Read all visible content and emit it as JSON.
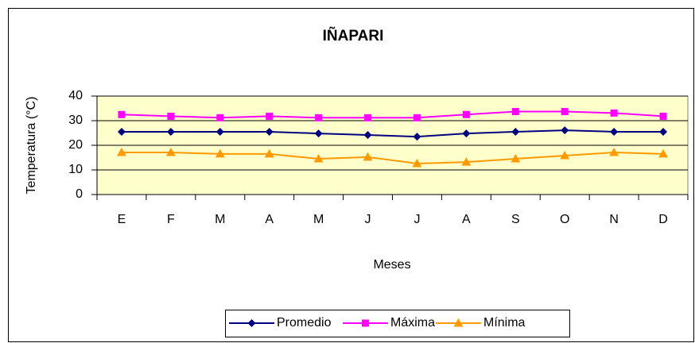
{
  "chart_data": {
    "type": "line",
    "title": "IÑAPARI",
    "x_label": "Meses",
    "y_label": "Temperatura (°C)",
    "categories": [
      "E",
      "F",
      "M",
      "A",
      "M",
      "J",
      "J",
      "A",
      "S",
      "O",
      "N",
      "D"
    ],
    "series": [
      {
        "name": "Promedio",
        "color": "#000080",
        "marker": "diamond",
        "values": [
          25.5,
          25.5,
          25.5,
          25.5,
          24.8,
          24.2,
          23.5,
          24.8,
          25.5,
          26.1,
          25.5,
          25.5
        ]
      },
      {
        "name": "Máxima",
        "color": "#ff00ff",
        "marker": "square",
        "values": [
          32.5,
          31.8,
          31.2,
          31.8,
          31.2,
          31.2,
          31.2,
          32.5,
          33.7,
          33.7,
          33.1,
          31.8
        ]
      },
      {
        "name": "Mínima",
        "color": "#ff9900",
        "marker": "triangle",
        "values": [
          17.1,
          17.1,
          16.5,
          16.5,
          14.5,
          15.2,
          12.6,
          13.2,
          14.5,
          15.8,
          17.1,
          16.5
        ]
      }
    ],
    "ylim": [
      0,
      40
    ],
    "yticks": [
      0,
      10,
      20,
      30,
      40
    ],
    "grid": true,
    "legend": "bottom"
  }
}
